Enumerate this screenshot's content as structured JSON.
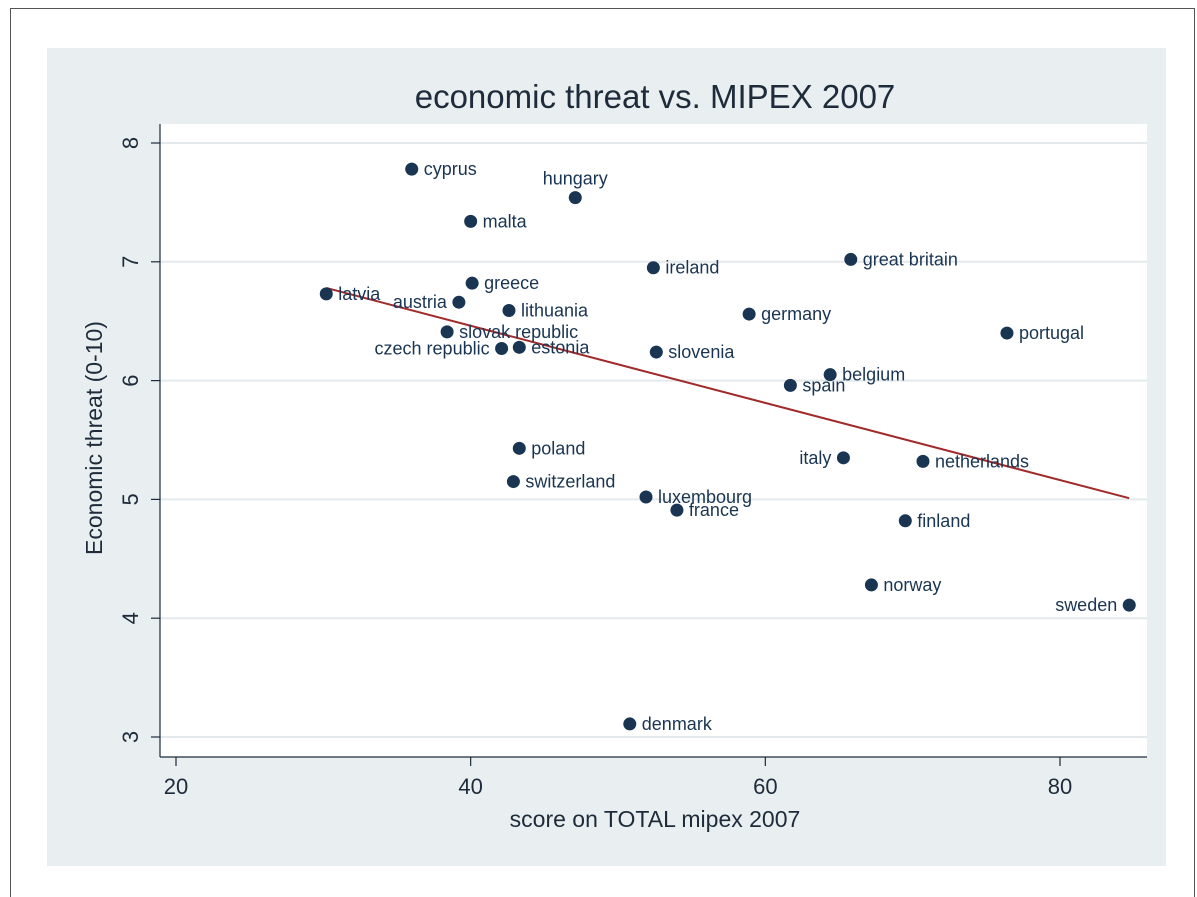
{
  "chart_data": {
    "type": "scatter",
    "title": "economic threat vs. MIPEX 2007",
    "xlabel": "score on TOTAL mipex 2007",
    "ylabel": "Economic threat (0-10)",
    "xlim": [
      19,
      85
    ],
    "ylim": [
      2.86,
      8.15
    ],
    "x_ticks": [
      20,
      40,
      60,
      80
    ],
    "y_ticks": [
      3,
      4,
      5,
      6,
      7,
      8
    ],
    "grid": "horizontal",
    "colors": {
      "plot_bg": "#ffffff",
      "outer_bg": "#e9eef0",
      "marker": "#1a3552",
      "fit_line": "#a12a2a",
      "grid": "#e4e9ec"
    },
    "points": [
      {
        "label": "cyprus",
        "x": 36.0,
        "y": 7.78,
        "label_pos": "right"
      },
      {
        "label": "hungary",
        "x": 47.1,
        "y": 7.54,
        "label_pos": "above"
      },
      {
        "label": "malta",
        "x": 40.0,
        "y": 7.34,
        "label_pos": "right"
      },
      {
        "label": "ireland",
        "x": 52.4,
        "y": 6.95,
        "label_pos": "right"
      },
      {
        "label": "great britain",
        "x": 65.8,
        "y": 7.02,
        "label_pos": "right"
      },
      {
        "label": "greece",
        "x": 40.1,
        "y": 6.82,
        "label_pos": "right"
      },
      {
        "label": "latvia",
        "x": 30.2,
        "y": 6.73,
        "label_pos": "right"
      },
      {
        "label": "austria",
        "x": 39.2,
        "y": 6.66,
        "label_pos": "left"
      },
      {
        "label": "lithuania",
        "x": 42.6,
        "y": 6.59,
        "label_pos": "right"
      },
      {
        "label": "germany",
        "x": 58.9,
        "y": 6.56,
        "label_pos": "right"
      },
      {
        "label": "portugal",
        "x": 76.4,
        "y": 6.4,
        "label_pos": "right"
      },
      {
        "label": "slovak republic",
        "x": 38.4,
        "y": 6.41,
        "label_pos": "right"
      },
      {
        "label": "czech republic",
        "x": 42.1,
        "y": 6.27,
        "label_pos": "left"
      },
      {
        "label": "estonia",
        "x": 43.3,
        "y": 6.28,
        "label_pos": "right"
      },
      {
        "label": "slovenia",
        "x": 52.6,
        "y": 6.24,
        "label_pos": "right"
      },
      {
        "label": "belgium",
        "x": 64.4,
        "y": 6.05,
        "label_pos": "right"
      },
      {
        "label": "spain",
        "x": 61.7,
        "y": 5.96,
        "label_pos": "right"
      },
      {
        "label": "poland",
        "x": 43.3,
        "y": 5.43,
        "label_pos": "right"
      },
      {
        "label": "italy",
        "x": 65.3,
        "y": 5.35,
        "label_pos": "left"
      },
      {
        "label": "netherlands",
        "x": 70.7,
        "y": 5.32,
        "label_pos": "right"
      },
      {
        "label": "switzerland",
        "x": 42.9,
        "y": 5.15,
        "label_pos": "right"
      },
      {
        "label": "luxembourg",
        "x": 51.9,
        "y": 5.02,
        "label_pos": "right"
      },
      {
        "label": "france",
        "x": 54.0,
        "y": 4.91,
        "label_pos": "right"
      },
      {
        "label": "finland",
        "x": 69.5,
        "y": 4.82,
        "label_pos": "right"
      },
      {
        "label": "norway",
        "x": 67.2,
        "y": 4.28,
        "label_pos": "right"
      },
      {
        "label": "sweden",
        "x": 84.7,
        "y": 4.11,
        "label_pos": "left"
      },
      {
        "label": "denmark",
        "x": 50.8,
        "y": 3.11,
        "label_pos": "right"
      }
    ],
    "fit_line": {
      "x": [
        30.2,
        84.7
      ],
      "y": [
        6.78,
        5.01
      ]
    }
  }
}
